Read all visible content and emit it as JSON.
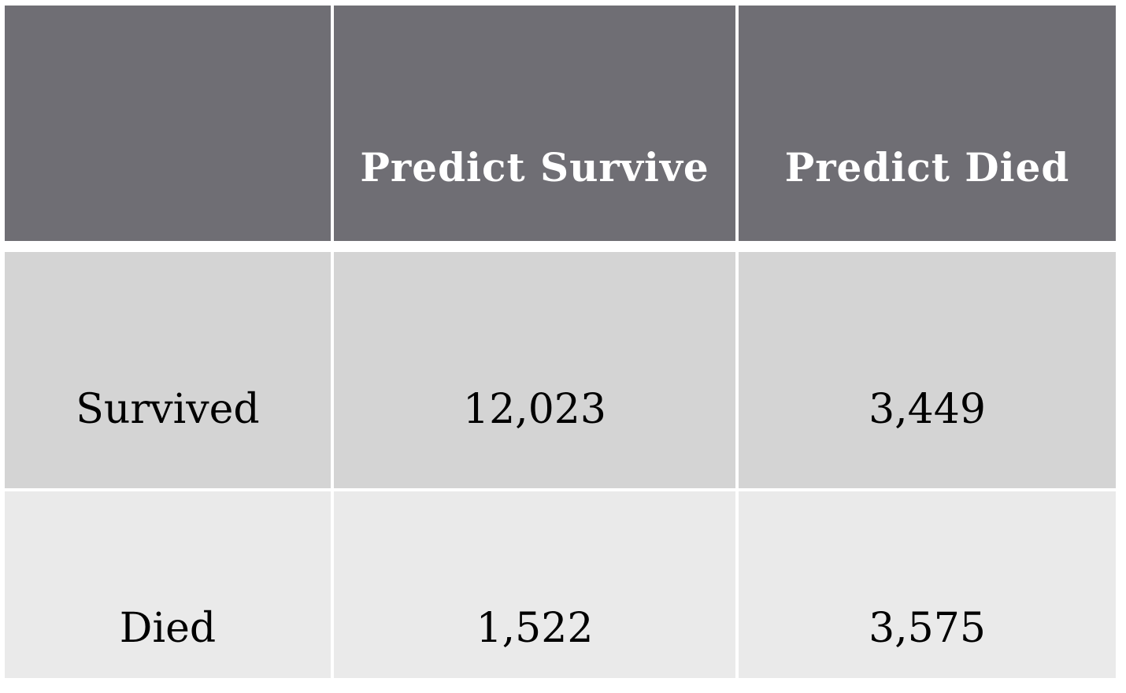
{
  "chart_data": {
    "type": "table",
    "colors": {
      "header_bg": "#6f6e74",
      "row_survived_bg": "#d4d4d4",
      "row_died_bg": "#eaeaea",
      "divider": "#ffffff"
    },
    "columns": [
      "",
      "Predict Survive",
      "Predict Died"
    ],
    "rows": [
      {
        "label": "Survived",
        "values": [
          "12,023",
          "3,449"
        ]
      },
      {
        "label": "Died",
        "values": [
          "1,522",
          "3,575"
        ]
      }
    ]
  }
}
